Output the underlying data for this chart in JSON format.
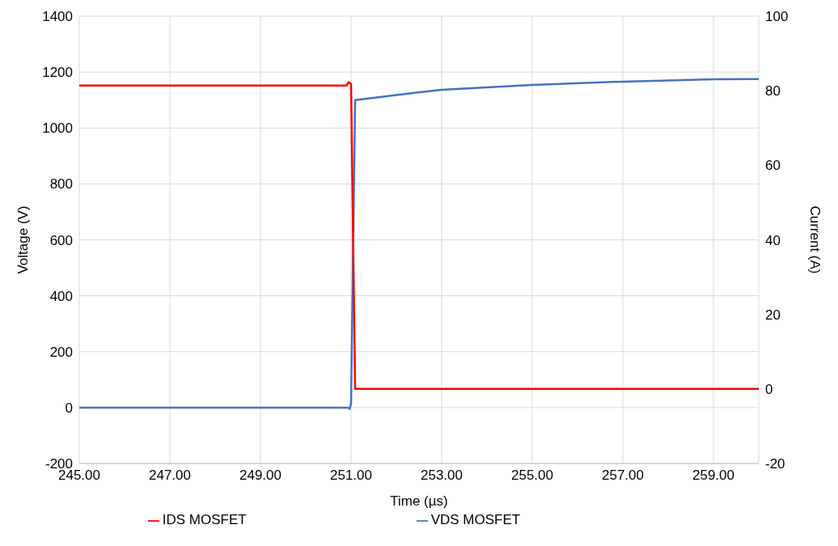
{
  "chart_data": {
    "type": "line",
    "xlabel": "Time (µs)",
    "ylabel": "Voltage (V)",
    "y2label": "Current (A)",
    "xlim": [
      245,
      260
    ],
    "xticks": [
      {
        "value": 245,
        "label": "245.00"
      },
      {
        "value": 247,
        "label": "247.00"
      },
      {
        "value": 249,
        "label": "249.00"
      },
      {
        "value": 251,
        "label": "251.00"
      },
      {
        "value": 253,
        "label": "253.00"
      },
      {
        "value": 255,
        "label": "255.00"
      },
      {
        "value": 257,
        "label": "257.00"
      },
      {
        "value": 259,
        "label": "259.00"
      }
    ],
    "ylim": [
      -200,
      1400
    ],
    "yticks": [
      -200,
      0,
      200,
      400,
      600,
      800,
      1000,
      1200,
      1400
    ],
    "y2lim": [
      -20,
      100
    ],
    "y2ticks": [
      -20,
      0,
      20,
      40,
      60,
      80,
      100
    ],
    "grid": true,
    "legend": "bottom",
    "marker": "none",
    "line_style": "solid",
    "series": [
      {
        "name": "VDS MOSFET",
        "color": "#4472c4",
        "x": [
          245,
          250.93,
          250.97,
          251.0,
          251.09,
          252,
          253,
          255,
          257,
          259,
          260
        ],
        "values": [
          0,
          0,
          -5,
          15,
          1100,
          1118,
          1137,
          1154,
          1166,
          1174,
          1175
        ]
      },
      {
        "name": "IDS MOSFET",
        "color": "#ff0000",
        "axis": "y2",
        "x": [
          245,
          250.9,
          250.95,
          251.0,
          251.09,
          252,
          260
        ],
        "values": [
          81.4,
          81.4,
          82.3,
          81.8,
          0,
          0,
          0
        ]
      }
    ]
  }
}
